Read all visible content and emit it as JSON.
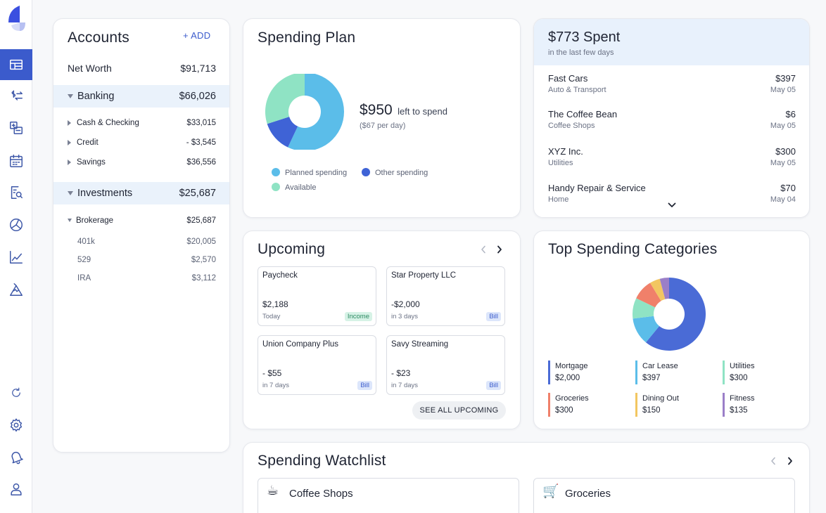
{
  "accounts": {
    "title": "Accounts",
    "add_label": "+ ADD",
    "net_worth_label": "Net Worth",
    "net_worth_value": "$91,713",
    "banking": {
      "label": "Banking",
      "value": "$66,026",
      "items": [
        {
          "label": "Cash & Checking",
          "value": "$33,015"
        },
        {
          "label": "Credit",
          "value": "- $3,545"
        },
        {
          "label": "Savings",
          "value": "$36,556"
        }
      ]
    },
    "investments": {
      "label": "Investments",
      "value": "$25,687",
      "brokerage": {
        "label": "Brokerage",
        "value": "$25,687"
      },
      "items": [
        {
          "label": "401k",
          "value": "$20,005"
        },
        {
          "label": "529",
          "value": "$2,570"
        },
        {
          "label": "IRA",
          "value": "$3,112"
        }
      ]
    }
  },
  "spending_plan": {
    "title": "Spending Plan",
    "amount": "$950",
    "amount_suffix": "left to spend",
    "per_day": "($67 per day)",
    "legend": {
      "planned": "Planned spending",
      "other": "Other spending",
      "available": "Available"
    },
    "colors": {
      "planned": "#5bbde9",
      "other": "#3f63d6",
      "available": "#8fe3c4"
    },
    "donut": [
      {
        "key": "planned",
        "value": 57
      },
      {
        "key": "other",
        "value": 13
      },
      {
        "key": "available",
        "value": 30
      }
    ]
  },
  "spent": {
    "title": "$773 Spent",
    "subtitle": "in the last few days",
    "transactions": [
      {
        "name": "Fast Cars",
        "category": "Auto & Transport",
        "amount": "$397",
        "date": "May 05"
      },
      {
        "name": "The Coffee Bean",
        "category": "Coffee Shops",
        "amount": "$6",
        "date": "May 05"
      },
      {
        "name": "XYZ Inc.",
        "category": "Utilities",
        "amount": "$300",
        "date": "May 05"
      },
      {
        "name": "Handy Repair & Service",
        "category": "Home",
        "amount": "$70",
        "date": "May 04"
      }
    ]
  },
  "upcoming": {
    "title": "Upcoming",
    "see_all_label": "SEE ALL UPCOMING",
    "items": [
      {
        "name": "Paycheck",
        "amount": "$2,188",
        "when": "Today",
        "badge": "Income",
        "type": "income"
      },
      {
        "name": "Star Property LLC",
        "amount": "-$2,000",
        "when": "in 3 days",
        "badge": "Bill",
        "type": "bill"
      },
      {
        "name": "Union Company Plus",
        "amount": "- $55",
        "when": "in 7 days",
        "badge": "Bill",
        "type": "bill"
      },
      {
        "name": "Savy Streaming",
        "amount": "- $23",
        "when": "in 7 days",
        "badge": "Bill",
        "type": "bill"
      }
    ]
  },
  "top_categories": {
    "title": "Top Spending Categories",
    "items": [
      {
        "name": "Mortgage",
        "value": "$2,000",
        "amount": 2000,
        "color": "#4a6bd6"
      },
      {
        "name": "Car Lease",
        "value": "$397",
        "amount": 397,
        "color": "#5bbde9"
      },
      {
        "name": "Utilities",
        "value": "$300",
        "amount": 300,
        "color": "#8fe3c4"
      },
      {
        "name": "Groceries",
        "value": "$300",
        "amount": 300,
        "color": "#f0806a"
      },
      {
        "name": "Dining Out",
        "value": "$150",
        "amount": 150,
        "color": "#f2c661"
      },
      {
        "name": "Fitness",
        "value": "$135",
        "amount": 135,
        "color": "#9b7fc8"
      }
    ]
  },
  "watchlist": {
    "title": "Spending Watchlist",
    "items": [
      {
        "name": "Coffee Shops",
        "icon": "coffee-icon",
        "glyph": "☕"
      },
      {
        "name": "Groceries",
        "icon": "cart-icon",
        "glyph": "🛒"
      }
    ]
  },
  "sidebar": {
    "top": [
      "dashboard-icon",
      "transactions-icon",
      "budget-icon",
      "calendar-icon",
      "reports-icon",
      "categories-icon",
      "investments-icon",
      "goals-icon"
    ],
    "bottom": [
      "refresh-icon",
      "settings-icon",
      "notifications-icon",
      "profile-icon"
    ]
  },
  "ui": {
    "chevron_down": "⌄",
    "arrow_left": "‹",
    "arrow_right": "›"
  }
}
